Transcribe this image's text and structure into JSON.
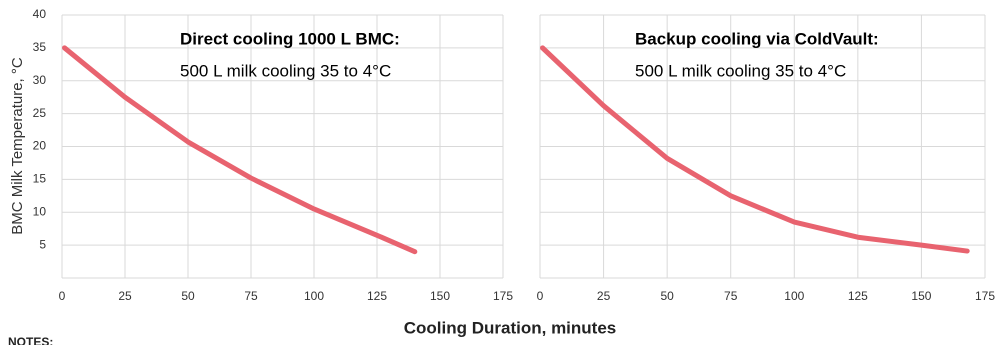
{
  "chart_data": [
    {
      "type": "line",
      "title": "Direct cooling 1000 L BMC:",
      "subtitle": "500 L milk cooling 35 to 4°C",
      "x": [
        1,
        25,
        50,
        75,
        100,
        125,
        140
      ],
      "series": [
        {
          "name": "Direct cooling",
          "color": "#e8636f",
          "values": [
            35,
            27.5,
            20.7,
            15.2,
            10.5,
            6.5,
            4
          ]
        }
      ],
      "xlim": [
        0,
        175
      ],
      "xticks": [
        0,
        25,
        50,
        75,
        100,
        125,
        150,
        175
      ],
      "ylim": [
        0,
        40
      ],
      "yticks": [
        5,
        10,
        15,
        20,
        25,
        30,
        35,
        40
      ],
      "ytick_labels": true,
      "grid": true
    },
    {
      "type": "line",
      "title": "Backup cooling via ColdVault:",
      "subtitle": "500 L milk cooling 35 to 4°C",
      "x": [
        1,
        25,
        50,
        75,
        100,
        125,
        150,
        168
      ],
      "series": [
        {
          "name": "Backup cooling",
          "color": "#e8636f",
          "values": [
            35,
            26.2,
            18.2,
            12.5,
            8.5,
            6.2,
            5,
            4.1
          ]
        }
      ],
      "xlim": [
        0,
        175
      ],
      "xticks": [
        0,
        25,
        50,
        75,
        100,
        125,
        150,
        175
      ],
      "ylim": [
        0,
        40
      ],
      "yticks": [
        5,
        10,
        15,
        20,
        25,
        30,
        35,
        40
      ],
      "ytick_labels": false,
      "grid": true
    }
  ],
  "shared": {
    "ylabel": "BMC Milk Temperature, °C",
    "xlabel": "Cooling Duration, minutes"
  },
  "notes": {
    "title": "NOTES:"
  }
}
